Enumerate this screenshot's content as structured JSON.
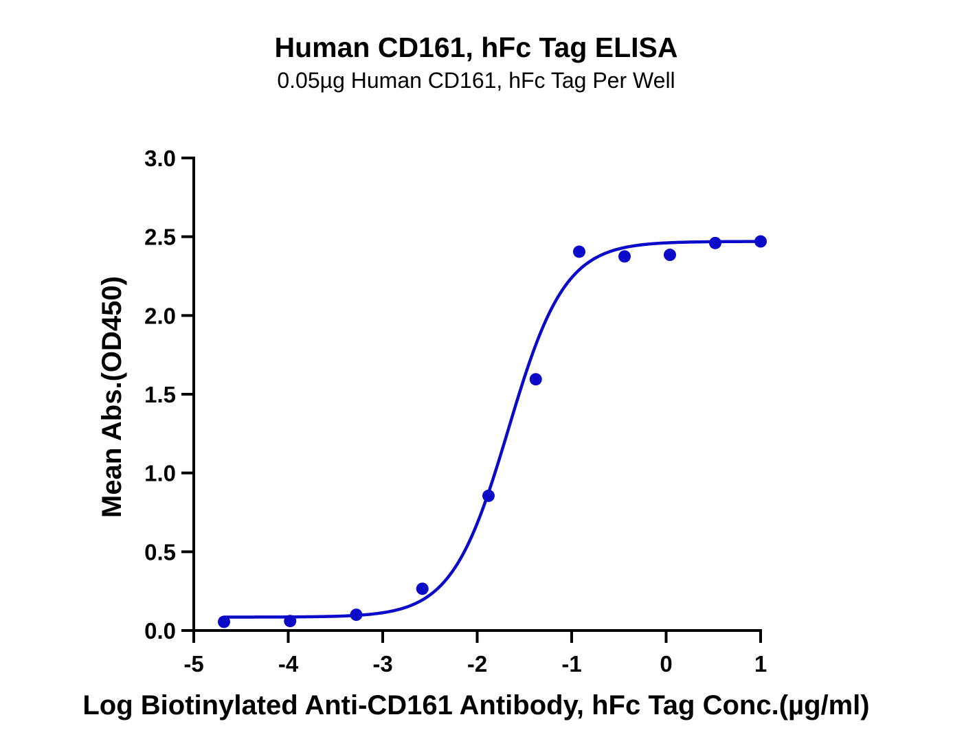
{
  "chart_data": {
    "type": "scatter",
    "title": "Human CD161, hFc Tag ELISA",
    "subtitle": "0.05µg Human CD161, hFc Tag Per Well",
    "xlabel": "Log Biotinylated Anti-CD161 Antibody, hFc Tag Conc.(µg/ml)",
    "ylabel": "Mean Abs.(OD450)",
    "xlim": [
      -5,
      1
    ],
    "ylim": [
      0,
      3
    ],
    "xticks": [
      "-5",
      "-4",
      "-3",
      "-2",
      "-1",
      "0",
      "1"
    ],
    "yticks": [
      "0.0",
      "0.5",
      "1.0",
      "1.5",
      "2.0",
      "2.5",
      "3.0"
    ],
    "grid": false,
    "color": "#0a0ac8",
    "series": [
      {
        "x": [
          -4.68,
          -3.98,
          -3.28,
          -2.58,
          -1.88,
          -1.38,
          -0.92,
          -0.44,
          0.04,
          0.52,
          1.0
        ],
        "y": [
          0.055,
          0.06,
          0.1,
          0.265,
          0.855,
          1.595,
          2.405,
          2.375,
          2.385,
          2.46,
          2.47
        ]
      }
    ],
    "fit": {
      "model": "4PL",
      "bottom": 0.085,
      "top": 2.47,
      "log_ec50": -1.67,
      "hill_slope": 1.45
    }
  }
}
